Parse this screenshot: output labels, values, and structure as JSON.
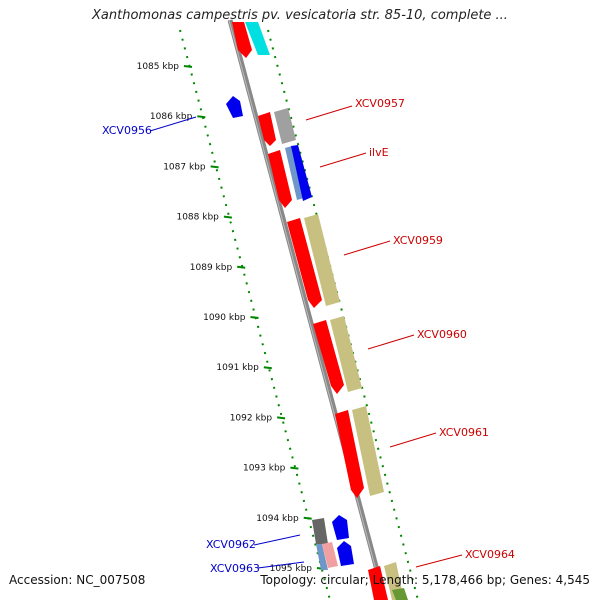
{
  "title": "Xanthomonas campestris pv. vesicatoria str. 85-10, complete ...",
  "accession": "Accession: NC_007508",
  "summary": "Topology: circular; Length: 5,178,466 bp; Genes: 4,545",
  "ticks": [
    "1085 kbp",
    "1086 kbp",
    "1087 kbp",
    "1088 kbp",
    "1089 kbp",
    "1090 kbp",
    "1091 kbp",
    "1092 kbp",
    "1093 kbp",
    "1094 kbp",
    "1095 kbp"
  ],
  "gene_labels_right": [
    "XCV0957",
    "ilvE",
    "XCV0959",
    "XCV0960",
    "XCV0961",
    "XCV0964"
  ],
  "gene_labels_left": [
    "XCV0956",
    "XCV0962",
    "XCV0963"
  ],
  "colors": {
    "forward_gene": "#ff0000",
    "reverse_gene": "#0000ee",
    "cds_tan": "#c8c080",
    "cds_cyan": "#00e0e0",
    "cds_gray": "#a0a0a0",
    "tick": "#008800",
    "backbone": "#888888",
    "label_right": "#cc0000",
    "label_left": "#0000cc"
  }
}
